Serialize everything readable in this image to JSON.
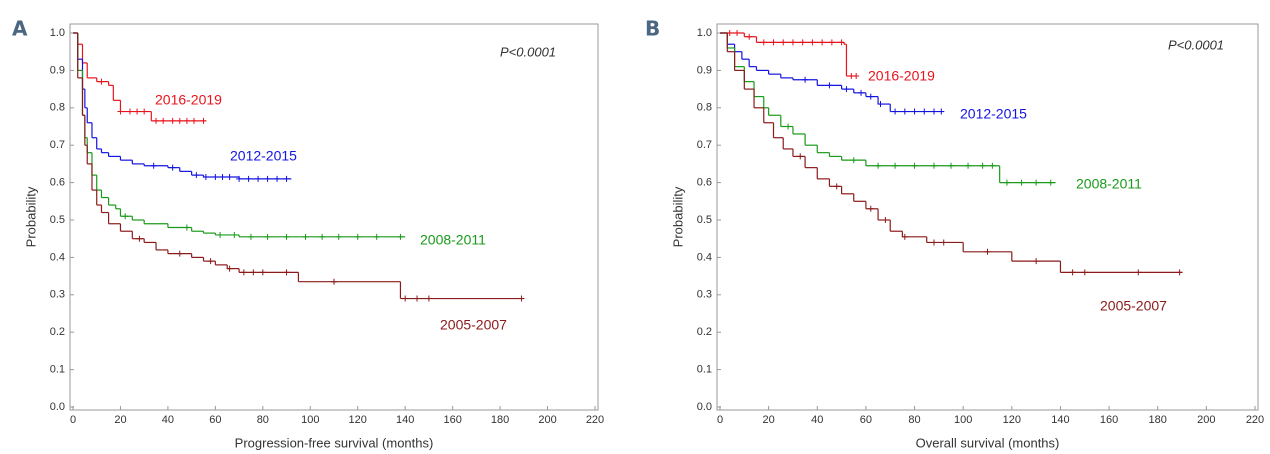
{
  "chart_data": [
    {
      "type": "step",
      "panel": "A",
      "annotation": "P<0.0001",
      "xlabel": "Progression-free survival (months)",
      "ylabel": "Probability",
      "xlim": [
        0,
        220
      ],
      "ylim": [
        0,
        1
      ],
      "xticks": [
        0,
        20,
        40,
        60,
        80,
        100,
        120,
        140,
        160,
        180,
        200,
        220
      ],
      "yticks": [
        {
          "value": 0,
          "label": "0.0"
        },
        0.1,
        0.2,
        0.3,
        0.4,
        0.5,
        0.6,
        0.7,
        0.8,
        0.9,
        {
          "value": 1,
          "label": "1.0"
        }
      ],
      "series": [
        {
          "name": "2016-2019",
          "color": "#e8141c",
          "x": [
            0,
            2,
            4,
            6,
            10,
            15,
            17,
            20,
            33,
            56
          ],
          "values": [
            1.0,
            0.97,
            0.92,
            0.88,
            0.87,
            0.86,
            0.82,
            0.79,
            0.765,
            0.765
          ],
          "censored": [
            12,
            20,
            24,
            27,
            30,
            35,
            38,
            42,
            45,
            48,
            51,
            55
          ]
        },
        {
          "name": "2012-2015",
          "color": "#1414e0",
          "x": [
            0,
            2,
            4,
            5,
            6,
            8,
            10,
            12,
            15,
            20,
            25,
            30,
            40,
            45,
            50,
            55,
            70,
            92
          ],
          "values": [
            1.0,
            0.93,
            0.85,
            0.8,
            0.76,
            0.72,
            0.69,
            0.68,
            0.67,
            0.66,
            0.65,
            0.645,
            0.64,
            0.63,
            0.62,
            0.615,
            0.61,
            0.61
          ],
          "censored": [
            34,
            42,
            52,
            56,
            60,
            63,
            66,
            70,
            74,
            78,
            82,
            86,
            90
          ]
        },
        {
          "name": "2008-2011",
          "color": "#1a9a1a",
          "x": [
            0,
            2,
            4,
            5,
            6,
            8,
            10,
            12,
            15,
            18,
            20,
            25,
            30,
            40,
            50,
            55,
            60,
            70,
            140
          ],
          "values": [
            1.0,
            0.9,
            0.78,
            0.72,
            0.68,
            0.62,
            0.58,
            0.56,
            0.54,
            0.53,
            0.51,
            0.5,
            0.49,
            0.48,
            0.47,
            0.465,
            0.46,
            0.455,
            0.455
          ],
          "censored": [
            22,
            48,
            62,
            68,
            75,
            82,
            90,
            98,
            105,
            112,
            120,
            128,
            138
          ]
        },
        {
          "name": "2005-2007",
          "color": "#8b1a1a",
          "x": [
            0,
            2,
            4,
            5,
            6,
            8,
            10,
            12,
            15,
            20,
            25,
            30,
            35,
            40,
            50,
            55,
            60,
            65,
            70,
            95,
            138,
            190
          ],
          "values": [
            1.0,
            0.88,
            0.78,
            0.7,
            0.65,
            0.58,
            0.54,
            0.52,
            0.49,
            0.47,
            0.45,
            0.44,
            0.42,
            0.41,
            0.4,
            0.39,
            0.38,
            0.37,
            0.36,
            0.335,
            0.29,
            0.29
          ],
          "censored": [
            28,
            45,
            58,
            66,
            72,
            76,
            80,
            90,
            110,
            140,
            145,
            150,
            189
          ]
        }
      ]
    },
    {
      "type": "step",
      "panel": "B",
      "annotation": "P<0.0001",
      "xlabel": "Overall survival (months)",
      "ylabel": "Probability",
      "xlim": [
        0,
        220
      ],
      "ylim": [
        0,
        1
      ],
      "xticks": [
        0,
        20,
        40,
        60,
        80,
        100,
        120,
        140,
        160,
        180,
        200,
        220
      ],
      "yticks": [
        {
          "value": 0,
          "label": "0.0"
        },
        0.1,
        0.2,
        0.3,
        0.4,
        0.5,
        0.6,
        0.7,
        0.8,
        0.9,
        {
          "value": 1,
          "label": "1.0"
        }
      ],
      "series": [
        {
          "name": "2016-2019",
          "color": "#e8141c",
          "x": [
            0,
            10,
            15,
            51,
            52,
            56
          ],
          "values": [
            1.0,
            0.99,
            0.975,
            0.97,
            0.885,
            0.885
          ],
          "censored": [
            4,
            7,
            12,
            18,
            22,
            26,
            30,
            34,
            38,
            42,
            46,
            50,
            54,
            56
          ]
        },
        {
          "name": "2012-2015",
          "color": "#1414e0",
          "x": [
            0,
            3,
            6,
            9,
            12,
            15,
            20,
            25,
            30,
            40,
            50,
            55,
            60,
            65,
            70,
            92
          ],
          "values": [
            1.0,
            0.97,
            0.95,
            0.93,
            0.91,
            0.9,
            0.89,
            0.88,
            0.875,
            0.86,
            0.85,
            0.84,
            0.83,
            0.81,
            0.79,
            0.79
          ],
          "censored": [
            35,
            45,
            52,
            58,
            62,
            66,
            72,
            76,
            80,
            84,
            88,
            91
          ]
        },
        {
          "name": "2008-2011",
          "color": "#1a9a1a",
          "x": [
            0,
            3,
            6,
            10,
            14,
            18,
            20,
            25,
            30,
            35,
            40,
            45,
            50,
            60,
            115,
            138
          ],
          "values": [
            1.0,
            0.96,
            0.91,
            0.87,
            0.83,
            0.8,
            0.78,
            0.75,
            0.73,
            0.7,
            0.68,
            0.67,
            0.66,
            0.645,
            0.6,
            0.6
          ],
          "censored": [
            28,
            55,
            65,
            72,
            80,
            88,
            95,
            102,
            108,
            112,
            118,
            124,
            130,
            136
          ]
        },
        {
          "name": "2005-2007",
          "color": "#8b1a1a",
          "x": [
            0,
            3,
            6,
            10,
            14,
            18,
            22,
            26,
            30,
            35,
            40,
            45,
            50,
            55,
            60,
            65,
            70,
            75,
            85,
            100,
            120,
            140,
            190
          ],
          "values": [
            1.0,
            0.95,
            0.9,
            0.85,
            0.8,
            0.76,
            0.72,
            0.69,
            0.67,
            0.64,
            0.61,
            0.59,
            0.57,
            0.55,
            0.53,
            0.5,
            0.47,
            0.455,
            0.44,
            0.415,
            0.39,
            0.36,
            0.36
          ],
          "censored": [
            33,
            48,
            62,
            68,
            76,
            88,
            92,
            110,
            130,
            145,
            150,
            172,
            189
          ]
        }
      ]
    }
  ]
}
